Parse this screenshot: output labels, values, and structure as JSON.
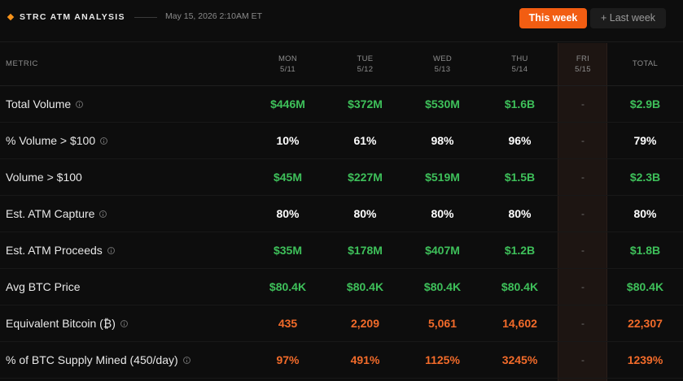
{
  "header": {
    "title": "STRC ATM ANALYSIS",
    "timestamp": "May 15, 2026 2:10AM ET",
    "toggle": {
      "this_week": "This week",
      "last_week": "+ Last week",
      "active": "This week",
      "active_color": "#f25d12"
    }
  },
  "table": {
    "columns": [
      {
        "day": "METRIC",
        "date": ""
      },
      {
        "day": "MON",
        "date": "5/11"
      },
      {
        "day": "TUE",
        "date": "5/12"
      },
      {
        "day": "WED",
        "date": "5/13"
      },
      {
        "day": "THU",
        "date": "5/14"
      },
      {
        "day": "FRI",
        "date": "5/15"
      },
      {
        "day": "TOTAL",
        "date": ""
      }
    ],
    "rows": [
      {
        "label": "Total Volume",
        "info": true,
        "style": "green",
        "values": [
          "$446M",
          "$372M",
          "$530M",
          "$1.6B",
          "-",
          "$2.9B"
        ]
      },
      {
        "label": "% Volume > $100",
        "info": true,
        "style": "white",
        "values": [
          "10%",
          "61%",
          "98%",
          "96%",
          "-",
          "79%"
        ]
      },
      {
        "label": "Volume > $100",
        "info": false,
        "style": "green",
        "values": [
          "$45M",
          "$227M",
          "$519M",
          "$1.5B",
          "-",
          "$2.3B"
        ]
      },
      {
        "label": "Est. ATM Capture",
        "info": true,
        "style": "white",
        "values": [
          "80%",
          "80%",
          "80%",
          "80%",
          "-",
          "80%"
        ]
      },
      {
        "label": "Est. ATM Proceeds",
        "info": true,
        "style": "green",
        "values": [
          "$35M",
          "$178M",
          "$407M",
          "$1.2B",
          "-",
          "$1.8B"
        ]
      },
      {
        "label": "Avg BTC Price",
        "info": false,
        "style": "green",
        "values": [
          "$80.4K",
          "$80.4K",
          "$80.4K",
          "$80.4K",
          "-",
          "$80.4K"
        ]
      },
      {
        "label": "Equivalent Bitcoin (₿)",
        "info": true,
        "style": "orange",
        "values": [
          "435",
          "2,209",
          "5,061",
          "14,602",
          "-",
          "22,307"
        ]
      },
      {
        "label": "% of BTC Supply Mined (450/day)",
        "info": true,
        "style": "orange",
        "values": [
          "97%",
          "491%",
          "1125%",
          "3245%",
          "-",
          "1239%"
        ]
      }
    ]
  },
  "colors": {
    "background": "#0d0d0d",
    "accent": "#f25d12",
    "positive": "#3ec05a",
    "btc_orange": "#f26b2a",
    "friday_highlight": "#1d1512"
  }
}
